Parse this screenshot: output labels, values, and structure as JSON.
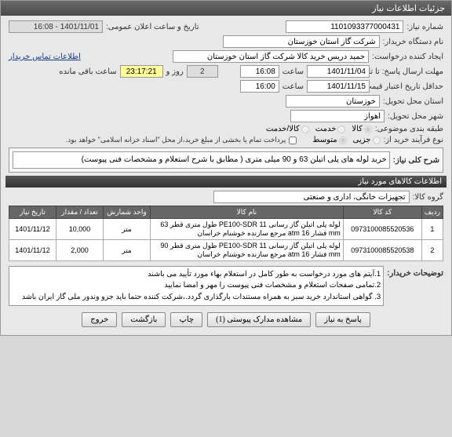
{
  "window": {
    "title": "جزئیات اطلاعات نیاز"
  },
  "labels": {
    "need_number": "شماره نیاز:",
    "buyer_org": "نام دستگاه خریدار:",
    "requester": "ایجاد کننده درخواست:",
    "deadline": "مهلت ارسال پاسخ: تا تاریخ:",
    "min_expiry": "حداقل تاریخ اعتبار قیمت: تا تاریخ:",
    "delivery_state": "استان محل تحویل:",
    "delivery_city": "شهر محل تحویل:",
    "subject_class": "طبقه بندی موضوعی:",
    "purchase_type": "نوع فرآیند خرید از:",
    "announce_time": "تاریخ و ساعت اعلان عمومی:",
    "buyer_contact": "اطلاعات تماس خریدار",
    "time1": "ساعت",
    "time2": "ساعت",
    "days_and": "روز و",
    "hours_remain": "ساعت باقی مانده",
    "partial_pay_note": "پرداخت تمام یا بخشی از مبلغ خرید،از محل \"اسناد خزانه اسلامی\" خواهد بود.",
    "general_title": "شرح کلی نیاز:",
    "items_header": "اطلاعات کالاهای مورد نیاز",
    "goods_group": "گروه کالا:",
    "need_desc": "توضیحات خریدار:",
    "th_row": "ردیف",
    "th_code": "کد کالا",
    "th_name": "نام کالا",
    "th_order": "واحد شمارش",
    "th_qty": "تعداد / مقدار",
    "th_date": "تاریخ نیاز",
    "btn_resp": "پاسخ به نیاز",
    "btn_attach": "مشاهده مدارک پیوستی (1)",
    "btn_print": "چاپ",
    "btn_back": "بازگشت",
    "btn_exit": "خروج"
  },
  "fields": {
    "need_number": "1101093377000431",
    "buyer_org": "شرکت گاز استان خوزستان",
    "requester": "حمید دریس خرید کالا شرکت گاز استان خوزستان",
    "deadline_date": "1401/11/04",
    "deadline_time": "16:08",
    "expiry_date": "1401/11/15",
    "expiry_time": "16:00",
    "delivery_state": "خوزستان",
    "delivery_city": "اهواز",
    "announce_time": "1401/11/01 - 16:08",
    "days_remain": "2",
    "hours_remain": "23:17:21",
    "general_title": "خرید لوله های پلی اتیلن 63 و 90 میلی متری ( مطابق با شرح استعلام و مشخصات فنی پیوست)",
    "goods_group": "تجهیزات خانگی، اداری و صنعتی",
    "need_desc_lines": [
      "1.آیتم های مورد درخواست به طور کامل در استعلام بهاء مورد تأیید می باشند",
      "2.تمامی صفحات استعلام و مشخصات فنی پیوست را مهر و امضا نمایید",
      "3. گواهی استاندارد خرید سبز به همراه مستندات بارگذاری گردد.،شرکت کننده حتما باید جزو وندور ملی گاز ایران باشد"
    ]
  },
  "subject_options": [
    "کالا",
    "خدمت",
    "کالا/خدمت"
  ],
  "purchase_options": [
    "جزیی",
    "متوسط"
  ],
  "items": [
    {
      "row": "1",
      "code": "0973100085520536",
      "name": "لوله پلی اتیلن گاز رسانی PE100-SDR 11 طول متری قطر 63 mm فشار atm 16 مرجع سازنده خوشنام خراسان",
      "unit": "متر",
      "qty": "10,000",
      "date": "1401/11/12"
    },
    {
      "row": "2",
      "code": "0973100085520538",
      "name": "لوله پلی اتیلن گاز رسانی PE100-SDR 11 طول متری قطر 90 mm فشار atm 16 مرجع سازنده خوشنام خراسان",
      "unit": "متر",
      "qty": "2,000",
      "date": "1401/11/12"
    }
  ]
}
